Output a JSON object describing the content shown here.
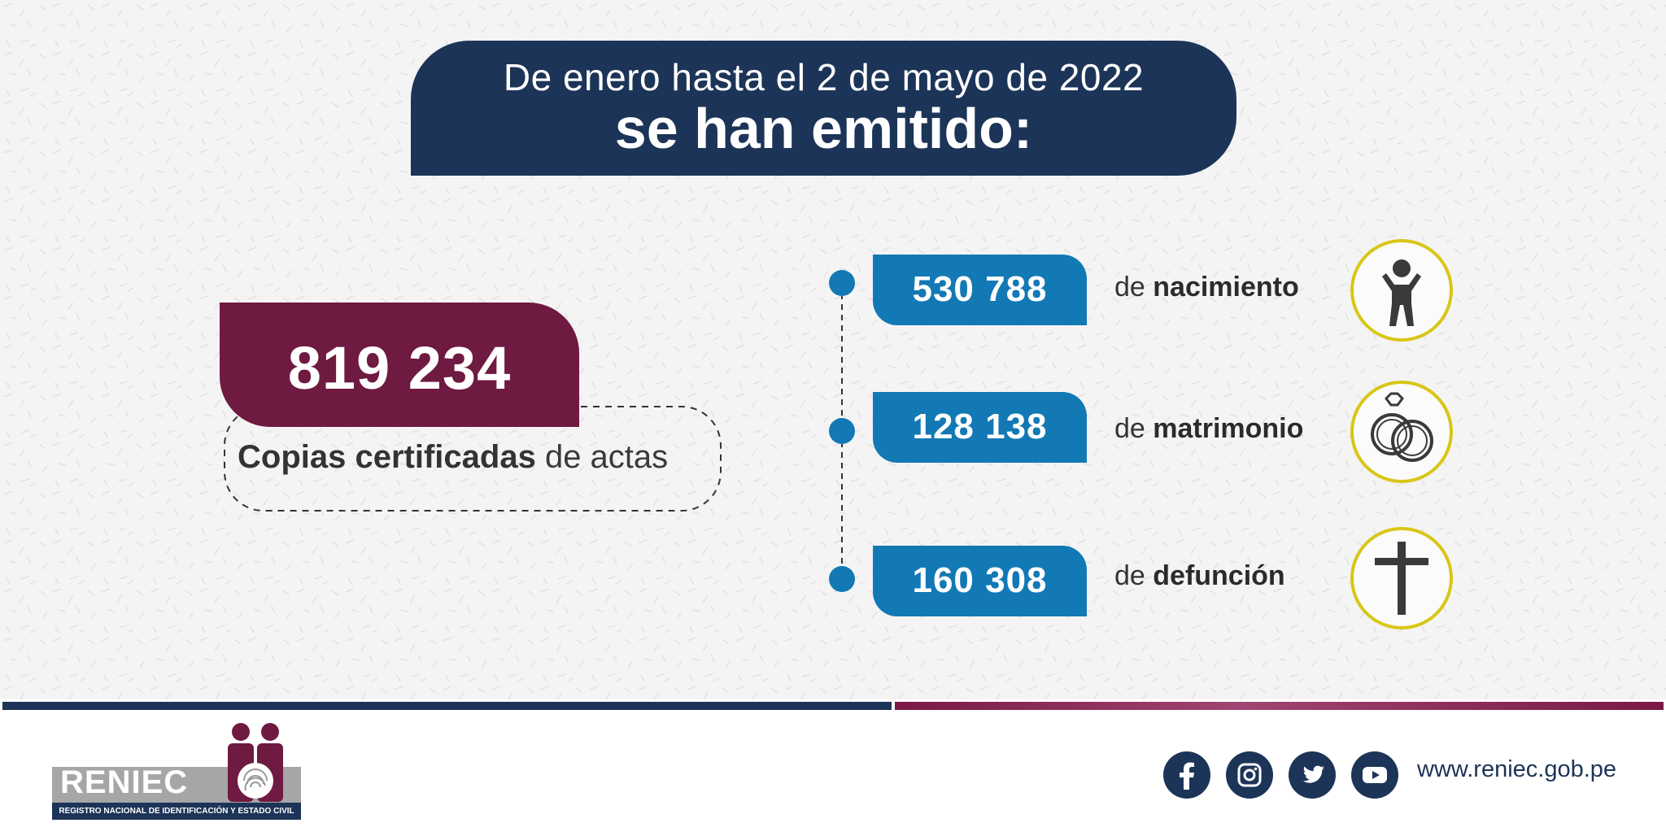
{
  "header": {
    "line1": "De enero hasta el 2 de mayo de 2022",
    "line2": "se han emitido:"
  },
  "total": {
    "value": "819 234",
    "label_bold": "Copias certificadas",
    "label_rest": " de actas"
  },
  "categories": [
    {
      "value": "530 788",
      "prefix": "de ",
      "name": "nacimiento",
      "icon": "child-icon"
    },
    {
      "value": "128 138",
      "prefix": "de ",
      "name": "matrimonio",
      "icon": "rings-icon"
    },
    {
      "value": "160 308",
      "prefix": "de ",
      "name": "defunción",
      "icon": "cross-icon"
    }
  ],
  "footer": {
    "logo_text": "RENIEC",
    "logo_sub": "REGISTRO NACIONAL DE IDENTIFICACIÓN Y ESTADO CIVIL",
    "social": [
      "facebook-icon",
      "instagram-icon",
      "twitter-icon",
      "youtube-icon"
    ],
    "website": "www.reniec.gob.pe"
  },
  "colors": {
    "navy": "#1c3457",
    "maroon": "#6f1a40",
    "blue": "#1279b5",
    "gold": "#d9c616"
  }
}
